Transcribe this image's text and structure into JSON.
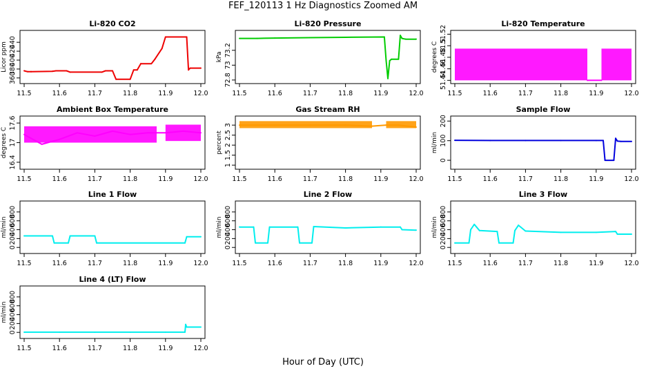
{
  "title": "FEF_120113 1 Hz Diagnostics Zoomed AM",
  "xlabel": "Hour of Day (UTC)",
  "chart_data": [
    {
      "type": "line",
      "title": "Li-820 CO2",
      "ylabel": "Licor ppm",
      "color": "#ee0000",
      "xlim": [
        11.5,
        12.0
      ],
      "ylim": [
        352,
        462
      ],
      "yticks": [
        360,
        380,
        400,
        420,
        440
      ],
      "xticks": [
        11.5,
        11.6,
        11.7,
        11.8,
        11.9,
        12.0
      ],
      "x": [
        11.5,
        11.51,
        11.519,
        11.52,
        11.58,
        11.59,
        11.62,
        11.63,
        11.72,
        11.73,
        11.75,
        11.76,
        11.8,
        11.81,
        11.82,
        11.83,
        11.86,
        11.87,
        11.89,
        11.9,
        11.955,
        11.96,
        11.965,
        11.97,
        12.0
      ],
      "y": [
        376,
        374,
        374,
        374,
        375,
        376,
        376,
        373,
        373,
        376,
        376,
        357,
        357,
        378,
        378,
        392,
        392,
        402,
        426,
        452,
        452,
        452,
        378,
        382,
        382
      ]
    },
    {
      "type": "line",
      "title": "Li-820 Pressure",
      "ylabel": "kPa",
      "color": "#00cc00",
      "xlim": [
        11.5,
        12.0
      ],
      "ylim": [
        72.78,
        73.44
      ],
      "yticks": [
        72.8,
        73.0,
        73.2
      ],
      "xticks": [
        11.5,
        11.6,
        11.7,
        11.8,
        11.9,
        12.0
      ],
      "x": [
        11.5,
        11.55,
        11.6,
        11.7,
        11.8,
        11.91,
        11.915,
        11.92,
        11.925,
        11.93,
        11.95,
        11.955,
        11.96,
        11.97,
        12.0
      ],
      "y": [
        73.36,
        73.36,
        73.365,
        73.37,
        73.375,
        73.38,
        73.06,
        72.82,
        73.06,
        73.08,
        73.08,
        73.4,
        73.36,
        73.35,
        73.35
      ]
    },
    {
      "type": "line",
      "title": "Li-820 Temperature",
      "ylabel": "degrees C",
      "color": "#ff00ff",
      "xlim": [
        11.5,
        12.0
      ],
      "ylim": [
        51.438,
        51.523
      ],
      "yticks": [
        51.44,
        51.46,
        51.48,
        51.5,
        51.52
      ],
      "xticks": [
        11.5,
        11.6,
        11.7,
        11.8,
        11.9,
        12.0
      ],
      "band": [
        [
          11.5,
          11.875,
          51.44,
          51.495
        ],
        [
          11.915,
          12.0,
          51.44,
          51.495
        ]
      ],
      "x": [
        11.875,
        11.915
      ],
      "y": [
        51.44,
        51.44
      ]
    },
    {
      "type": "line",
      "title": "Ambient Box Temperature",
      "ylabel": "degrees C",
      "color": "#ff00ff",
      "xlim": [
        11.5,
        12.0
      ],
      "ylim": [
        16.25,
        17.75
      ],
      "yticks": [
        16.4,
        17.0,
        17.6
      ],
      "xticks": [
        11.5,
        11.6,
        11.7,
        11.8,
        11.9,
        12.0
      ],
      "band": [
        [
          11.5,
          11.875,
          17.0,
          17.5
        ],
        [
          11.9,
          12.0,
          17.05,
          17.55
        ]
      ],
      "x": [
        11.5,
        11.55,
        11.6,
        11.65,
        11.7,
        11.75,
        11.8,
        11.85,
        11.875,
        11.9,
        11.95,
        12.0
      ],
      "y": [
        17.25,
        16.95,
        17.1,
        17.3,
        17.2,
        17.35,
        17.25,
        17.3,
        17.3,
        17.3,
        17.35,
        17.3
      ]
    },
    {
      "type": "line",
      "title": "Gas Stream RH",
      "ylabel": "percent",
      "color": "#ff9900",
      "xlim": [
        11.5,
        12.0
      ],
      "ylim": [
        0.9,
        3.35
      ],
      "yticks": [
        1.0,
        1.5,
        2.0,
        2.5,
        3.0
      ],
      "xticks": [
        11.5,
        11.6,
        11.7,
        11.8,
        11.9,
        12.0
      ],
      "band": [
        [
          11.5,
          11.875,
          2.85,
          3.2
        ],
        [
          11.915,
          12.0,
          2.85,
          3.2
        ]
      ],
      "x": [
        11.5,
        11.6,
        11.7,
        11.8,
        11.875,
        11.915,
        11.95,
        12.0
      ],
      "y": [
        3.0,
        3.0,
        3.0,
        3.0,
        2.95,
        3.0,
        3.0,
        2.9
      ]
    },
    {
      "type": "line",
      "title": "Sample Flow",
      "ylabel": "ml/min",
      "color": "#0000dd",
      "xlim": [
        11.5,
        12.0
      ],
      "ylim": [
        -35,
        215
      ],
      "yticks": [
        0,
        100,
        200
      ],
      "xticks": [
        11.5,
        11.6,
        11.7,
        11.8,
        11.9,
        12.0
      ],
      "x": [
        11.5,
        11.6,
        11.7,
        11.8,
        11.9,
        11.92,
        11.925,
        11.95,
        11.955,
        11.96,
        11.97,
        12.0
      ],
      "y": [
        102,
        101,
        101,
        101,
        101,
        101,
        0,
        0,
        112,
        98,
        96,
        96
      ]
    },
    {
      "type": "line",
      "title": "Line 1 Flow",
      "ylabel": "ml/min",
      "color": "#00eeee",
      "xlim": [
        11.5,
        12.0
      ],
      "ylim": [
        -90,
        1000
      ],
      "yticks": [
        0,
        200,
        400,
        600,
        800
      ],
      "xticks": [
        11.5,
        11.6,
        11.7,
        11.8,
        11.9,
        12.0
      ],
      "x": [
        11.5,
        11.58,
        11.585,
        11.625,
        11.63,
        11.7,
        11.705,
        11.955,
        11.96,
        12.0
      ],
      "y": [
        260,
        260,
        100,
        100,
        260,
        260,
        100,
        100,
        240,
        240
      ]
    },
    {
      "type": "line",
      "title": "Line 2 Flow",
      "ylabel": "ml/min",
      "color": "#00eeee",
      "xlim": [
        11.5,
        12.0
      ],
      "ylim": [
        -90,
        1000
      ],
      "yticks": [
        0,
        200,
        400,
        600,
        800
      ],
      "xticks": [
        11.5,
        11.6,
        11.7,
        11.8,
        11.9,
        12.0
      ],
      "x": [
        11.5,
        11.54,
        11.545,
        11.58,
        11.585,
        11.665,
        11.67,
        11.705,
        11.71,
        11.8,
        11.9,
        11.955,
        11.96,
        12.0
      ],
      "y": [
        460,
        460,
        100,
        100,
        460,
        460,
        100,
        100,
        470,
        440,
        460,
        460,
        400,
        390
      ]
    },
    {
      "type": "line",
      "title": "Line 3 Flow",
      "ylabel": "ml/min",
      "color": "#00eeee",
      "xlim": [
        11.5,
        12.0
      ],
      "ylim": [
        -90,
        1000
      ],
      "yticks": [
        0,
        200,
        400,
        600,
        800
      ],
      "xticks": [
        11.5,
        11.6,
        11.7,
        11.8,
        11.9,
        12.0
      ],
      "x": [
        11.5,
        11.54,
        11.545,
        11.555,
        11.57,
        11.62,
        11.625,
        11.665,
        11.67,
        11.68,
        11.7,
        11.8,
        11.9,
        11.955,
        11.96,
        12.0
      ],
      "y": [
        100,
        100,
        400,
        520,
        380,
        360,
        100,
        100,
        380,
        500,
        370,
        340,
        340,
        360,
        300,
        300
      ]
    },
    {
      "type": "line",
      "title": "Line 4 (LT) Flow",
      "ylabel": "ml/min",
      "color": "#00eeee",
      "xlim": [
        11.5,
        12.0
      ],
      "ylim": [
        -90,
        1000
      ],
      "yticks": [
        0,
        200,
        400,
        600,
        800
      ],
      "xticks": [
        11.5,
        11.6,
        11.7,
        11.8,
        11.9,
        12.0
      ],
      "x": [
        11.5,
        11.6,
        11.7,
        11.8,
        11.9,
        11.955,
        11.957,
        11.96,
        12.0
      ],
      "y": [
        5,
        5,
        5,
        5,
        5,
        5,
        180,
        120,
        120
      ]
    }
  ]
}
